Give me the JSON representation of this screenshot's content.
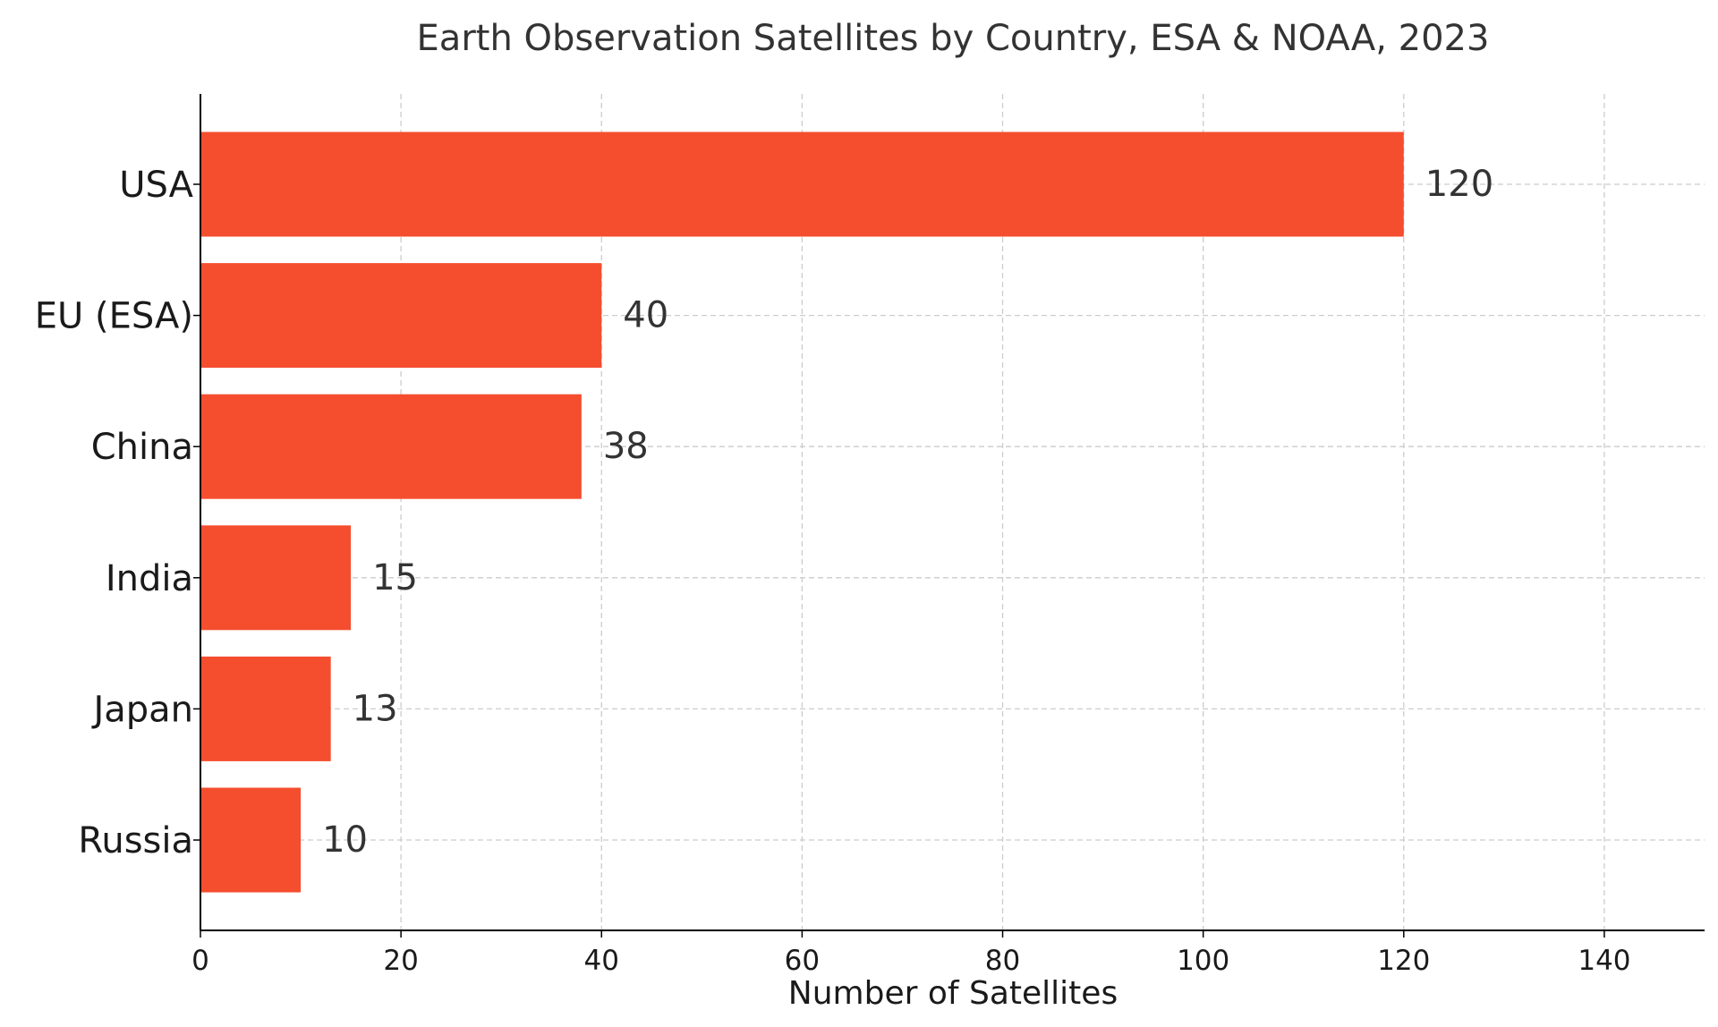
{
  "chart_data": {
    "type": "bar",
    "orientation": "horizontal",
    "title": "Earth Observation Satellites by Country, ESA & NOAA, 2023",
    "categories": [
      "USA",
      "EU (ESA)",
      "China",
      "India",
      "Japan",
      "Russia"
    ],
    "values": [
      120,
      40,
      38,
      15,
      13,
      10
    ],
    "xlabel": "Number of Satellites",
    "ylabel": "",
    "xlim": [
      0,
      150
    ],
    "xticks": [
      0,
      20,
      40,
      60,
      80,
      100,
      120,
      140
    ],
    "bar_color": "#f44e2f",
    "data_labels": true,
    "grid": true,
    "legend": "none"
  }
}
